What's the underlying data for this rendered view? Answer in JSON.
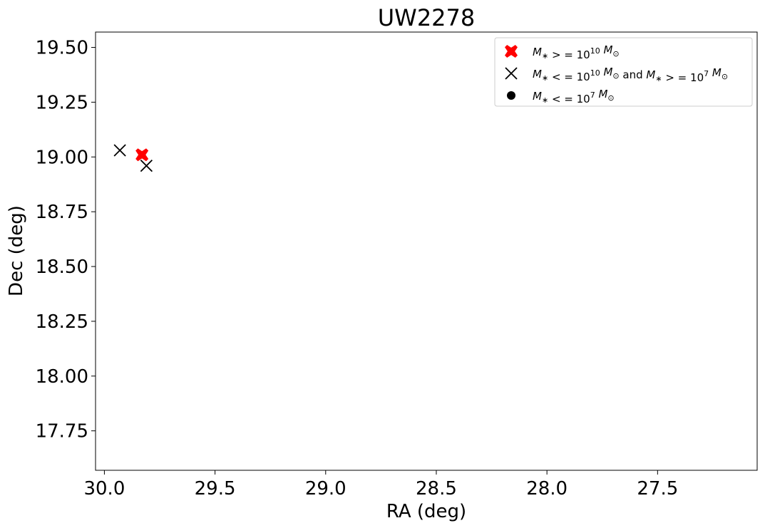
{
  "chart_data": {
    "type": "scatter",
    "title": "UW2278",
    "xlabel": "RA (deg)",
    "ylabel": "Dec (deg)",
    "xlim": [
      30.04,
      27.05
    ],
    "ylim": [
      17.57,
      19.57
    ],
    "x_ticks": [
      30.0,
      29.5,
      29.0,
      28.5,
      28.0,
      27.5
    ],
    "x_tick_labels": [
      "30.0",
      "29.5",
      "29.0",
      "28.5",
      "28.0",
      "27.5"
    ],
    "y_ticks": [
      19.5,
      19.25,
      19.0,
      18.75,
      18.5,
      18.25,
      18.0,
      17.75
    ],
    "y_tick_labels": [
      "19.50",
      "19.25",
      "19.00",
      "18.75",
      "18.50",
      "18.25",
      "18.00",
      "17.75"
    ],
    "grid": false,
    "legend_position": "top-right",
    "series": [
      {
        "name": "M* >= 10^10 M⊙",
        "marker": "filled-x",
        "color": "#ff0000",
        "points": [
          {
            "x": 29.83,
            "y": 19.01
          }
        ]
      },
      {
        "name": "M* <= 10^10 M⊙ and M* >= 10^7 M⊙",
        "marker": "x",
        "color": "#000000",
        "points": [
          {
            "x": 29.93,
            "y": 19.03
          },
          {
            "x": 29.81,
            "y": 18.96
          }
        ]
      },
      {
        "name": "M* <= 10^7 M⊙",
        "marker": "circle",
        "color": "#000000",
        "points": []
      }
    ],
    "legend": {
      "entries": [
        {
          "marker": "filled-x",
          "color": "#ff0000",
          "parts": [
            [
              "M",
              "i"
            ],
            [
              "∗",
              "sub"
            ],
            [
              " > = 10",
              "n"
            ],
            [
              "10",
              "sup"
            ],
            [
              " M",
              "i"
            ],
            [
              "⊙",
              "sub"
            ]
          ]
        },
        {
          "marker": "x",
          "color": "#000000",
          "parts": [
            [
              "M",
              "i"
            ],
            [
              "∗",
              "sub"
            ],
            [
              " < = 10",
              "n"
            ],
            [
              "10",
              "sup"
            ],
            [
              " M",
              "i"
            ],
            [
              "⊙",
              "sub"
            ],
            [
              "  and ",
              "n"
            ],
            [
              "M",
              "i"
            ],
            [
              "∗",
              "sub"
            ],
            [
              " > = 10",
              "n"
            ],
            [
              "7",
              "sup"
            ],
            [
              " M",
              "i"
            ],
            [
              "⊙",
              "sub"
            ]
          ]
        },
        {
          "marker": "circle",
          "color": "#000000",
          "parts": [
            [
              "M",
              "i"
            ],
            [
              "∗",
              "sub"
            ],
            [
              " < = 10",
              "n"
            ],
            [
              "7",
              "sup"
            ],
            [
              " M",
              "i"
            ],
            [
              "⊙",
              "sub"
            ]
          ]
        }
      ]
    }
  }
}
